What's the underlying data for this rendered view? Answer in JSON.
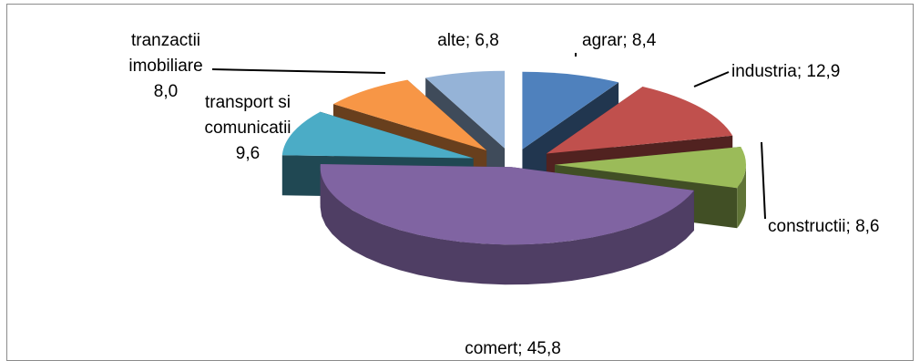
{
  "chart_data": {
    "type": "pie",
    "title": "",
    "separator": "; ",
    "slices": [
      {
        "name": "agrar",
        "value": "8,4",
        "amount": 8.4,
        "color": "#4F81BD"
      },
      {
        "name": "industria",
        "value": "12,9",
        "amount": 12.9,
        "color": "#C0504D"
      },
      {
        "name": "constructii",
        "value": "8,6",
        "amount": 8.6,
        "color": "#9BBB59"
      },
      {
        "name": "comert",
        "value": "45,8",
        "amount": 45.8,
        "color": "#8064A2"
      },
      {
        "name": "transport si comunicatii",
        "name_lines": [
          "transport si",
          "comunicatii"
        ],
        "value": "9,6",
        "amount": 9.6,
        "color": "#4BACC6"
      },
      {
        "name": "tranzactii imobiliare",
        "name_lines": [
          "tranzactii",
          "imobiliare"
        ],
        "value": "8,0",
        "amount": 8.0,
        "color": "#F79646"
      },
      {
        "name": "alte",
        "value": "6,8",
        "amount": 6.8,
        "color": "#95B3D7"
      }
    ],
    "style": "3d exploded pie",
    "legend": "none"
  }
}
